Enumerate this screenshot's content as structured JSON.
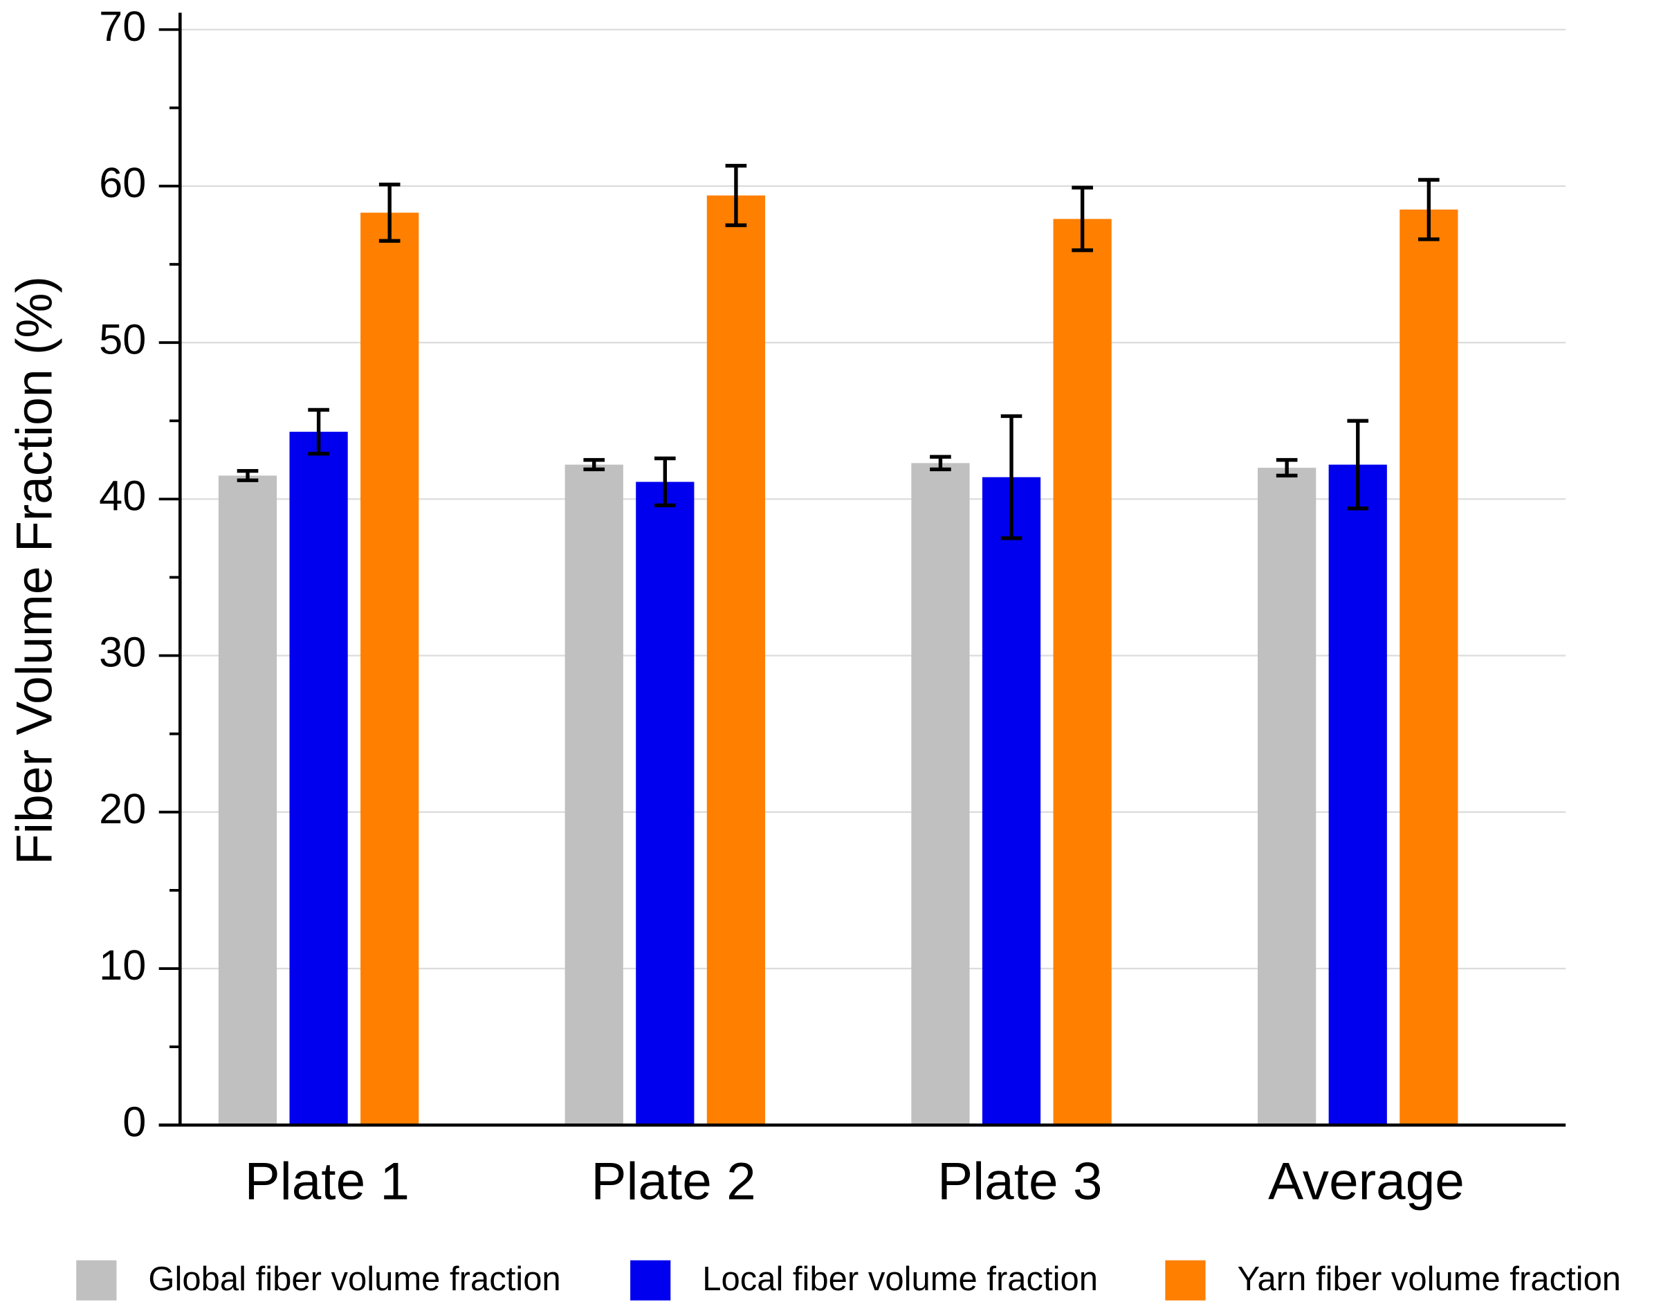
{
  "chart_data": {
    "type": "bar",
    "y_label": "Fiber Volume Fraction (%)",
    "categories": [
      "Plate 1",
      "Plate 2",
      "Plate 3",
      "Average"
    ],
    "series": [
      {
        "name": "Global fiber volume fraction",
        "color": "#c0c0c0",
        "values": [
          41.5,
          42.2,
          42.3,
          42.0
        ],
        "errors": [
          0.3,
          0.3,
          0.4,
          0.5
        ]
      },
      {
        "name": "Local fiber volume fraction",
        "color": "#0000ee",
        "values": [
          44.3,
          41.1,
          41.4,
          42.2
        ],
        "errors": [
          1.4,
          1.5,
          3.9,
          2.8
        ]
      },
      {
        "name": "Yarn fiber volume fraction",
        "color": "#ff7f00",
        "values": [
          58.3,
          59.4,
          57.9,
          58.5
        ],
        "errors": [
          1.8,
          1.9,
          2.0,
          1.9
        ]
      }
    ],
    "ylim": [
      0,
      70
    ],
    "yticks": [
      0,
      10,
      20,
      30,
      40,
      50,
      60,
      70
    ],
    "grid": true,
    "legend": "bottom"
  }
}
